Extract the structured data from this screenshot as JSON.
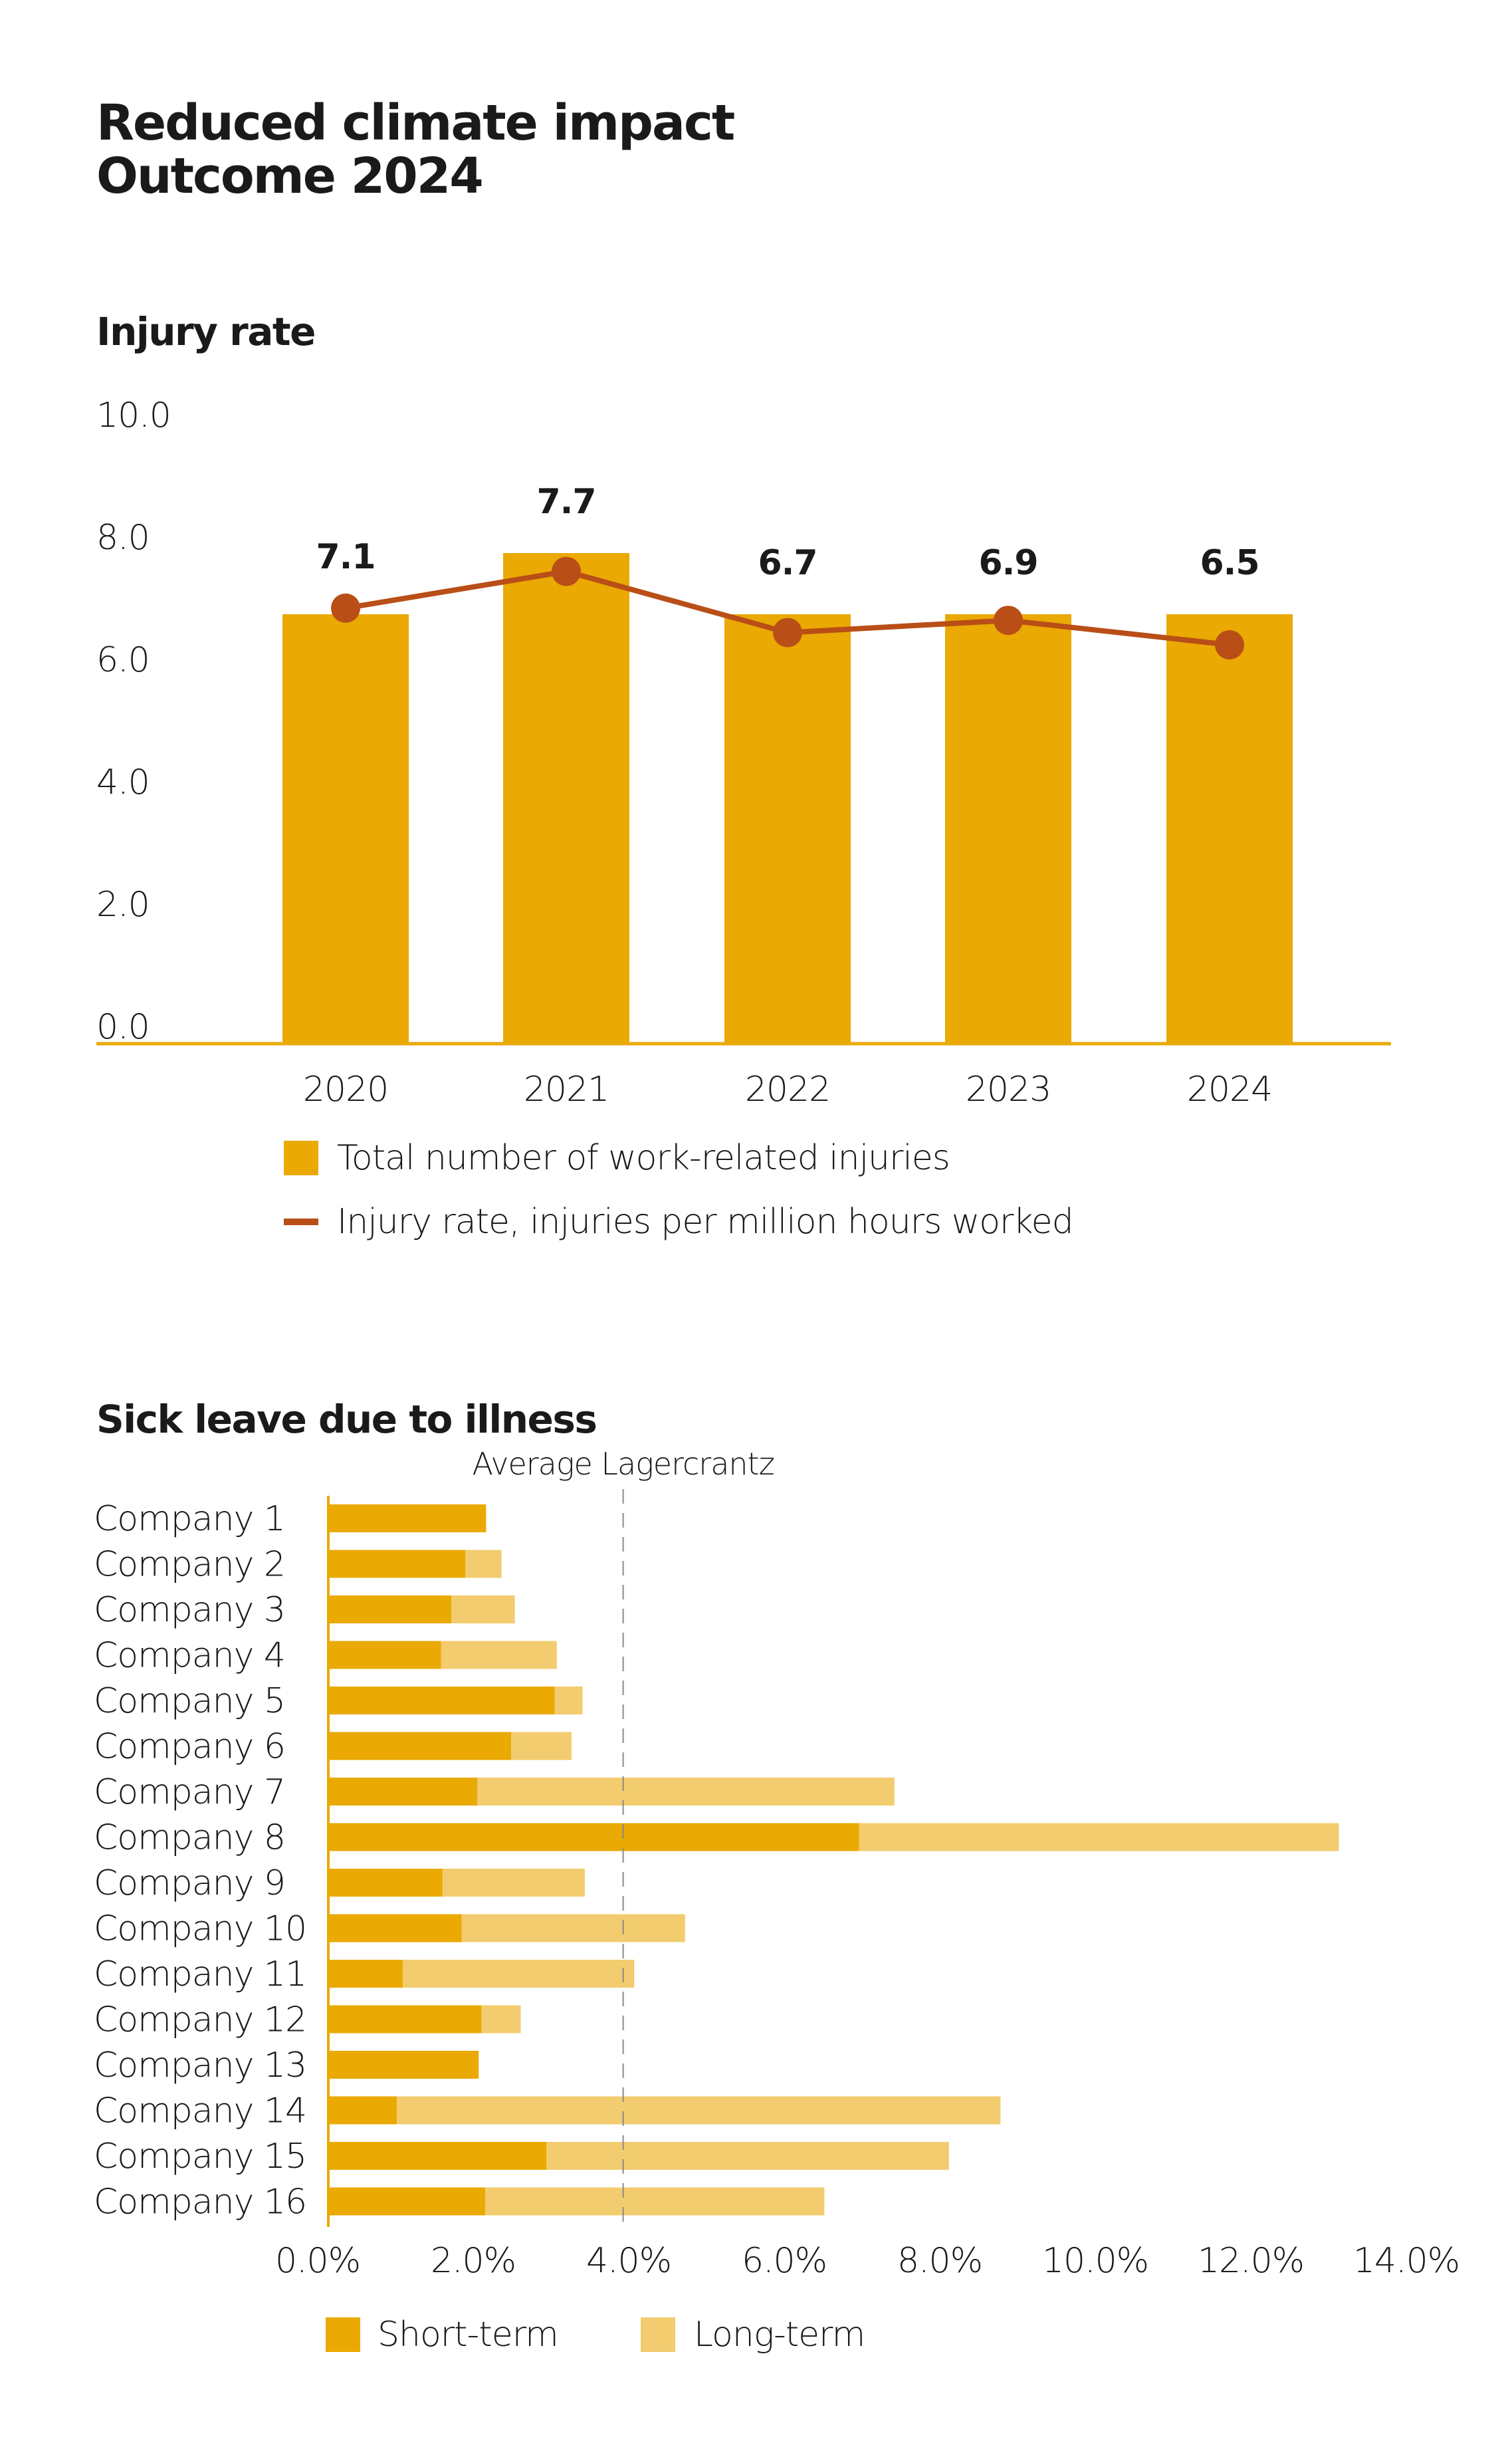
{
  "page": {
    "title_line1": "Reduced climate impact",
    "title_line2": "Outcome 2024"
  },
  "colors": {
    "primary": "#EAA903",
    "light": "#F2CC6E",
    "line": "#B94E17",
    "text": "#1a1a1a",
    "reference": "#8a8a8a"
  },
  "chart_data": [
    {
      "type": "bar",
      "title": "Injury rate",
      "xlabel": "",
      "ylabel": "",
      "categories": [
        "2020",
        "2021",
        "2022",
        "2023",
        "2024"
      ],
      "ylim": [
        0,
        10
      ],
      "yticks": [
        "0.0",
        "2.0",
        "4.0",
        "6.0",
        "8.0",
        "10.0"
      ],
      "grid": false,
      "series": [
        {
          "name": "Total number of work-related injuries",
          "kind": "bar",
          "values": [
            7.0,
            8.0,
            7.0,
            7.0,
            7.0
          ]
        },
        {
          "name": "Injury rate, injuries per million hours worked",
          "kind": "line",
          "values": [
            7.1,
            7.7,
            6.7,
            6.9,
            6.5
          ],
          "labels": [
            "7.1",
            "7.7",
            "6.7",
            "6.9",
            "6.5"
          ]
        }
      ],
      "legend": "bottom"
    },
    {
      "type": "bar",
      "orientation": "horizontal",
      "stacked": true,
      "title": "Sick leave due to illness",
      "xlabel": "",
      "ylabel": "",
      "categories": [
        "Company 1",
        "Company 2",
        "Company 3",
        "Company 4",
        "Company 5",
        "Company 6",
        "Company 7",
        "Company 8",
        "Company 9",
        "Company 10",
        "Company 11",
        "Company 12",
        "Company 13",
        "Company 14",
        "Company 15",
        "Company 16"
      ],
      "xlim": [
        0,
        14
      ],
      "xticks": [
        "0.0%",
        "2.0%",
        "4.0%",
        "6.0%",
        "8.0%",
        "10.0%",
        "12.0%",
        "14.0%"
      ],
      "series": [
        {
          "name": "Short-term",
          "values": [
            2.14,
            1.86,
            1.67,
            1.53,
            3.07,
            2.48,
            2.02,
            7.2,
            1.55,
            1.81,
            1.01,
            2.08,
            2.04,
            0.93,
            2.96,
            2.13
          ]
        },
        {
          "name": "Long-term",
          "values": [
            0.0,
            0.49,
            0.86,
            1.57,
            0.38,
            0.82,
            5.66,
            6.51,
            1.93,
            3.03,
            3.14,
            0.53,
            0.0,
            8.19,
            5.46,
            4.6
          ]
        }
      ],
      "reference_line": {
        "label": "Average Lagercrantz",
        "value": 4.0
      },
      "legend": "bottom-left"
    }
  ]
}
